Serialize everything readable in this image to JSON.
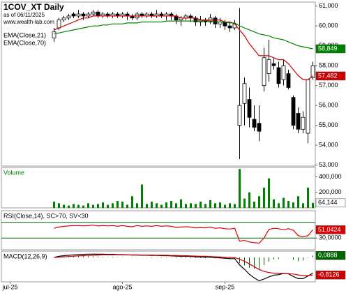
{
  "chart_data": [
    {
      "type": "candlestick",
      "title": "1COV_XT Daily",
      "subtitle": "as of 06/11/2025",
      "annotation": "www.wealth-lab.com",
      "categories": [
        null,
        "jul-25",
        null,
        null,
        null,
        null,
        null,
        null,
        null,
        null,
        null,
        null,
        null,
        null,
        null,
        null,
        null,
        null,
        null,
        null,
        null,
        null,
        null,
        null,
        "ago-25",
        null,
        null,
        null,
        null,
        null,
        null,
        null,
        null,
        null,
        null,
        null,
        null,
        null,
        null,
        null,
        null,
        null,
        null,
        null,
        null,
        "sep-25",
        null,
        null,
        null,
        null,
        null,
        null,
        null,
        null,
        null,
        null,
        null,
        null,
        null,
        null,
        null,
        null,
        null,
        null
      ],
      "open": [
        null,
        null,
        null,
        null,
        null,
        null,
        null,
        null,
        null,
        null,
        59.4,
        59.9,
        60.3,
        60.4,
        60.6,
        60.5,
        60.6,
        60.5,
        60.6,
        60.7,
        60.5,
        60.6,
        60.5,
        60.6,
        60.5,
        60.6,
        60.5,
        60.4,
        60.6,
        60.5,
        60.6,
        60.5,
        60.6,
        60.5,
        60.6,
        60.5,
        60.3,
        60.4,
        60.5,
        60.4,
        60.2,
        60.3,
        60.2,
        60.4,
        60.1,
        60.2,
        60.0,
        59.9,
        55.0,
        56.1,
        56.3,
        55.3,
        55.1,
        57.0,
        57.6,
        58.1,
        57.9,
        57.3,
        57.6,
        56.4,
        55.6,
        54.8,
        54.6,
        57.4
      ],
      "high": [
        null,
        null,
        null,
        null,
        null,
        null,
        null,
        null,
        null,
        null,
        59.9,
        60.4,
        60.5,
        60.6,
        60.7,
        60.8,
        60.7,
        60.7,
        60.8,
        60.8,
        60.7,
        60.7,
        60.7,
        60.7,
        60.7,
        60.7,
        60.6,
        60.7,
        60.7,
        60.7,
        60.7,
        60.8,
        60.7,
        60.7,
        60.7,
        60.6,
        60.5,
        60.6,
        60.6,
        60.5,
        60.5,
        60.4,
        60.6,
        60.5,
        60.4,
        60.3,
        60.2,
        60.3,
        60.9,
        57.4,
        56.9,
        56.0,
        56.0,
        58.9,
        59.3,
        58.4,
        58.2,
        58.3,
        57.8,
        56.5,
        55.9,
        55.7,
        57.3,
        58.2
      ],
      "low": [
        null,
        null,
        null,
        null,
        null,
        null,
        null,
        null,
        null,
        null,
        59.2,
        59.8,
        60.2,
        60.3,
        60.4,
        60.4,
        60.3,
        60.4,
        60.5,
        60.4,
        60.4,
        60.4,
        60.4,
        60.4,
        60.4,
        60.3,
        60.3,
        60.3,
        60.4,
        60.4,
        60.4,
        60.4,
        60.4,
        60.3,
        60.3,
        60.1,
        60.0,
        60.3,
        60.2,
        60.0,
        60.0,
        60.0,
        60.1,
        59.9,
        59.9,
        59.8,
        59.7,
        59.8,
        53.3,
        55.0,
        54.9,
        54.7,
        54.2,
        56.7,
        57.2,
        57.8,
        56.9,
        57.0,
        56.8,
        54.8,
        54.6,
        54.6,
        54.1,
        57.3
      ],
      "close": [
        null,
        null,
        null,
        null,
        null,
        null,
        null,
        null,
        null,
        null,
        59.7,
        60.3,
        60.4,
        60.5,
        60.5,
        60.6,
        60.5,
        60.6,
        60.7,
        60.5,
        60.6,
        60.5,
        60.6,
        60.5,
        60.6,
        60.5,
        60.4,
        60.6,
        60.5,
        60.6,
        60.5,
        60.6,
        60.5,
        60.6,
        60.5,
        60.3,
        60.4,
        60.5,
        60.4,
        60.2,
        60.3,
        60.2,
        60.4,
        60.1,
        60.2,
        60.0,
        59.9,
        60.1,
        56.0,
        57.1,
        55.4,
        54.9,
        54.7,
        58.4,
        58.3,
        58.0,
        57.1,
        58.0,
        56.9,
        55.0,
        54.8,
        55.4,
        57.3,
        58.0
      ],
      "up_color": "#ffffff",
      "down_color": "#000000",
      "series": [
        {
          "name": "EMA(Close,21)",
          "color": "#cc0000",
          "last_label": "57,482",
          "values": [
            null,
            null,
            null,
            null,
            null,
            null,
            null,
            null,
            null,
            null,
            59.8,
            59.9,
            60.0,
            60.1,
            60.2,
            60.3,
            60.4,
            60.4,
            60.5,
            60.5,
            60.5,
            60.5,
            60.5,
            60.5,
            60.5,
            60.5,
            60.5,
            60.5,
            60.5,
            60.5,
            60.5,
            60.5,
            60.5,
            60.5,
            60.5,
            60.5,
            60.4,
            60.4,
            60.4,
            60.4,
            60.3,
            60.3,
            60.3,
            60.3,
            60.3,
            60.2,
            60.2,
            60.1,
            59.8,
            59.5,
            59.1,
            58.8,
            58.5,
            58.5,
            58.5,
            58.4,
            58.3,
            58.3,
            58.1,
            57.8,
            57.5,
            57.3,
            57.3,
            57.482
          ]
        },
        {
          "name": "EMA(Close,70)",
          "color": "#008000",
          "last_label": "58,849",
          "values": [
            null,
            null,
            null,
            null,
            null,
            null,
            null,
            null,
            null,
            null,
            59.6,
            59.65,
            59.7,
            59.75,
            59.8,
            59.85,
            59.9,
            59.95,
            60.0,
            60.0,
            60.05,
            60.05,
            60.1,
            60.1,
            60.1,
            60.15,
            60.15,
            60.15,
            60.2,
            60.2,
            60.2,
            60.2,
            60.2,
            60.25,
            60.25,
            60.25,
            60.25,
            60.25,
            60.25,
            60.25,
            60.25,
            60.25,
            60.25,
            60.2,
            60.2,
            60.2,
            60.15,
            60.15,
            60.0,
            59.9,
            59.8,
            59.7,
            59.6,
            59.55,
            59.5,
            59.4,
            59.35,
            59.3,
            59.2,
            59.1,
            59.0,
            58.95,
            58.9,
            58.849
          ]
        }
      ],
      "ylim": [
        52.95,
        61.2
      ],
      "yticks": [
        {
          "value": 61,
          "label": "61,000"
        },
        {
          "value": 60,
          "label": "60,000"
        },
        {
          "value": 59,
          "label": "59,000"
        },
        {
          "value": 58,
          "label": "58,000"
        },
        {
          "value": 57,
          "label": "57,000"
        },
        {
          "value": 56,
          "label": "56,000"
        },
        {
          "value": 55,
          "label": "55,000"
        },
        {
          "value": 54,
          "label": "54,000"
        },
        {
          "value": 53,
          "label": "53,000"
        }
      ]
    },
    {
      "type": "bar",
      "title": "Volume",
      "color": "#008000",
      "last_label": "64,144",
      "values": [
        null,
        null,
        null,
        null,
        null,
        null,
        null,
        null,
        null,
        null,
        80,
        60,
        40,
        30,
        50,
        40,
        30,
        60,
        40,
        50,
        70,
        40,
        60,
        90,
        80,
        40,
        150,
        60,
        300,
        50,
        80,
        60,
        40,
        70,
        90,
        60,
        110,
        50,
        60,
        50,
        80,
        50,
        100,
        60,
        70,
        40,
        60,
        50,
        500,
        120,
        200,
        80,
        150,
        260,
        380,
        110,
        60,
        130,
        90,
        70,
        150,
        60,
        260,
        64.144
      ],
      "ylim": [
        0,
        520
      ],
      "yticks": [
        {
          "value": 400,
          "label": "400,000"
        },
        {
          "value": 200,
          "label": "200,000"
        }
      ]
    },
    {
      "type": "line",
      "title": "RSI(Close,14), SC>70, SV<30",
      "levels": [
        70,
        30
      ],
      "level_color": "#006400",
      "series": [
        {
          "name": "RSI",
          "color": "#dd0000",
          "last_label": "51,0424",
          "values": [
            null,
            null,
            null,
            null,
            null,
            null,
            null,
            null,
            null,
            null,
            55,
            58,
            60,
            61,
            62,
            62,
            61,
            62,
            63,
            61,
            62,
            61,
            62,
            60,
            62,
            60,
            59,
            62,
            60,
            61,
            60,
            62,
            60,
            61,
            60,
            57,
            58,
            59,
            58,
            56,
            57,
            56,
            58,
            55,
            56,
            54,
            53,
            55,
            22,
            24,
            20,
            18,
            17,
            30,
            52,
            55,
            54,
            51,
            54,
            50,
            36,
            33,
            36,
            51.0424
          ]
        }
      ],
      "ylim": [
        0,
        100
      ],
      "yticks": [
        {
          "value": 30,
          "label": "30,0000"
        }
      ]
    },
    {
      "type": "line",
      "title": "MACD(12,26,9)",
      "series": [
        {
          "name": "Histogram",
          "color": "#006400",
          "style": "bars",
          "last_label": "0,0888",
          "values": [
            null,
            null,
            null,
            null,
            null,
            null,
            null,
            null,
            null,
            null,
            0.0,
            0.04,
            0.05,
            0.06,
            0.06,
            0.06,
            0.06,
            0.06,
            0.05,
            0.04,
            0.03,
            0.02,
            0.02,
            0.01,
            0.01,
            0.0,
            -0.01,
            -0.01,
            -0.01,
            -0.01,
            -0.02,
            -0.01,
            -0.02,
            -0.02,
            -0.02,
            -0.03,
            -0.03,
            -0.03,
            -0.03,
            -0.03,
            -0.03,
            -0.04,
            -0.03,
            -0.04,
            -0.04,
            -0.05,
            -0.06,
            -0.05,
            -0.27,
            -0.37,
            -0.48,
            -0.52,
            -0.52,
            -0.35,
            -0.2,
            -0.09,
            -0.06,
            0.0,
            -0.01,
            -0.11,
            -0.17,
            -0.14,
            -0.02,
            0.0888
          ]
        },
        {
          "name": "MACD",
          "color": "#000000",
          "values": [
            null,
            null,
            null,
            null,
            null,
            null,
            null,
            null,
            null,
            null,
            0.0,
            0.05,
            0.08,
            0.1,
            0.12,
            0.13,
            0.14,
            0.15,
            0.15,
            0.15,
            0.15,
            0.14,
            0.14,
            0.13,
            0.13,
            0.12,
            0.11,
            0.11,
            0.1,
            0.1,
            0.09,
            0.09,
            0.08,
            0.08,
            0.07,
            0.06,
            0.05,
            0.05,
            0.04,
            0.03,
            0.02,
            0.01,
            0.01,
            -0.01,
            -0.02,
            -0.04,
            -0.06,
            -0.06,
            -0.35,
            -0.55,
            -0.78,
            -0.95,
            -1.08,
            -1.0,
            -0.9,
            -0.82,
            -0.8,
            -0.74,
            -0.76,
            -0.88,
            -0.98,
            -0.98,
            -0.86,
            -0.7238
          ]
        },
        {
          "name": "Signal",
          "color": "#cc0000",
          "last_label": "-0,8126",
          "values": [
            null,
            null,
            null,
            null,
            null,
            null,
            null,
            null,
            null,
            null,
            0.0,
            0.01,
            0.03,
            0.04,
            0.06,
            0.07,
            0.08,
            0.09,
            0.1,
            0.11,
            0.12,
            0.12,
            0.12,
            0.12,
            0.12,
            0.12,
            0.12,
            0.12,
            0.11,
            0.11,
            0.11,
            0.1,
            0.1,
            0.1,
            0.09,
            0.09,
            0.08,
            0.08,
            0.07,
            0.06,
            0.05,
            0.05,
            0.04,
            0.03,
            0.02,
            0.01,
            0.0,
            -0.01,
            -0.08,
            -0.18,
            -0.3,
            -0.43,
            -0.56,
            -0.65,
            -0.7,
            -0.73,
            -0.74,
            -0.74,
            -0.75,
            -0.77,
            -0.81,
            -0.84,
            -0.84,
            -0.8126
          ]
        }
      ],
      "ylim": [
        -1.13,
        0.29
      ],
      "yticks": []
    }
  ]
}
